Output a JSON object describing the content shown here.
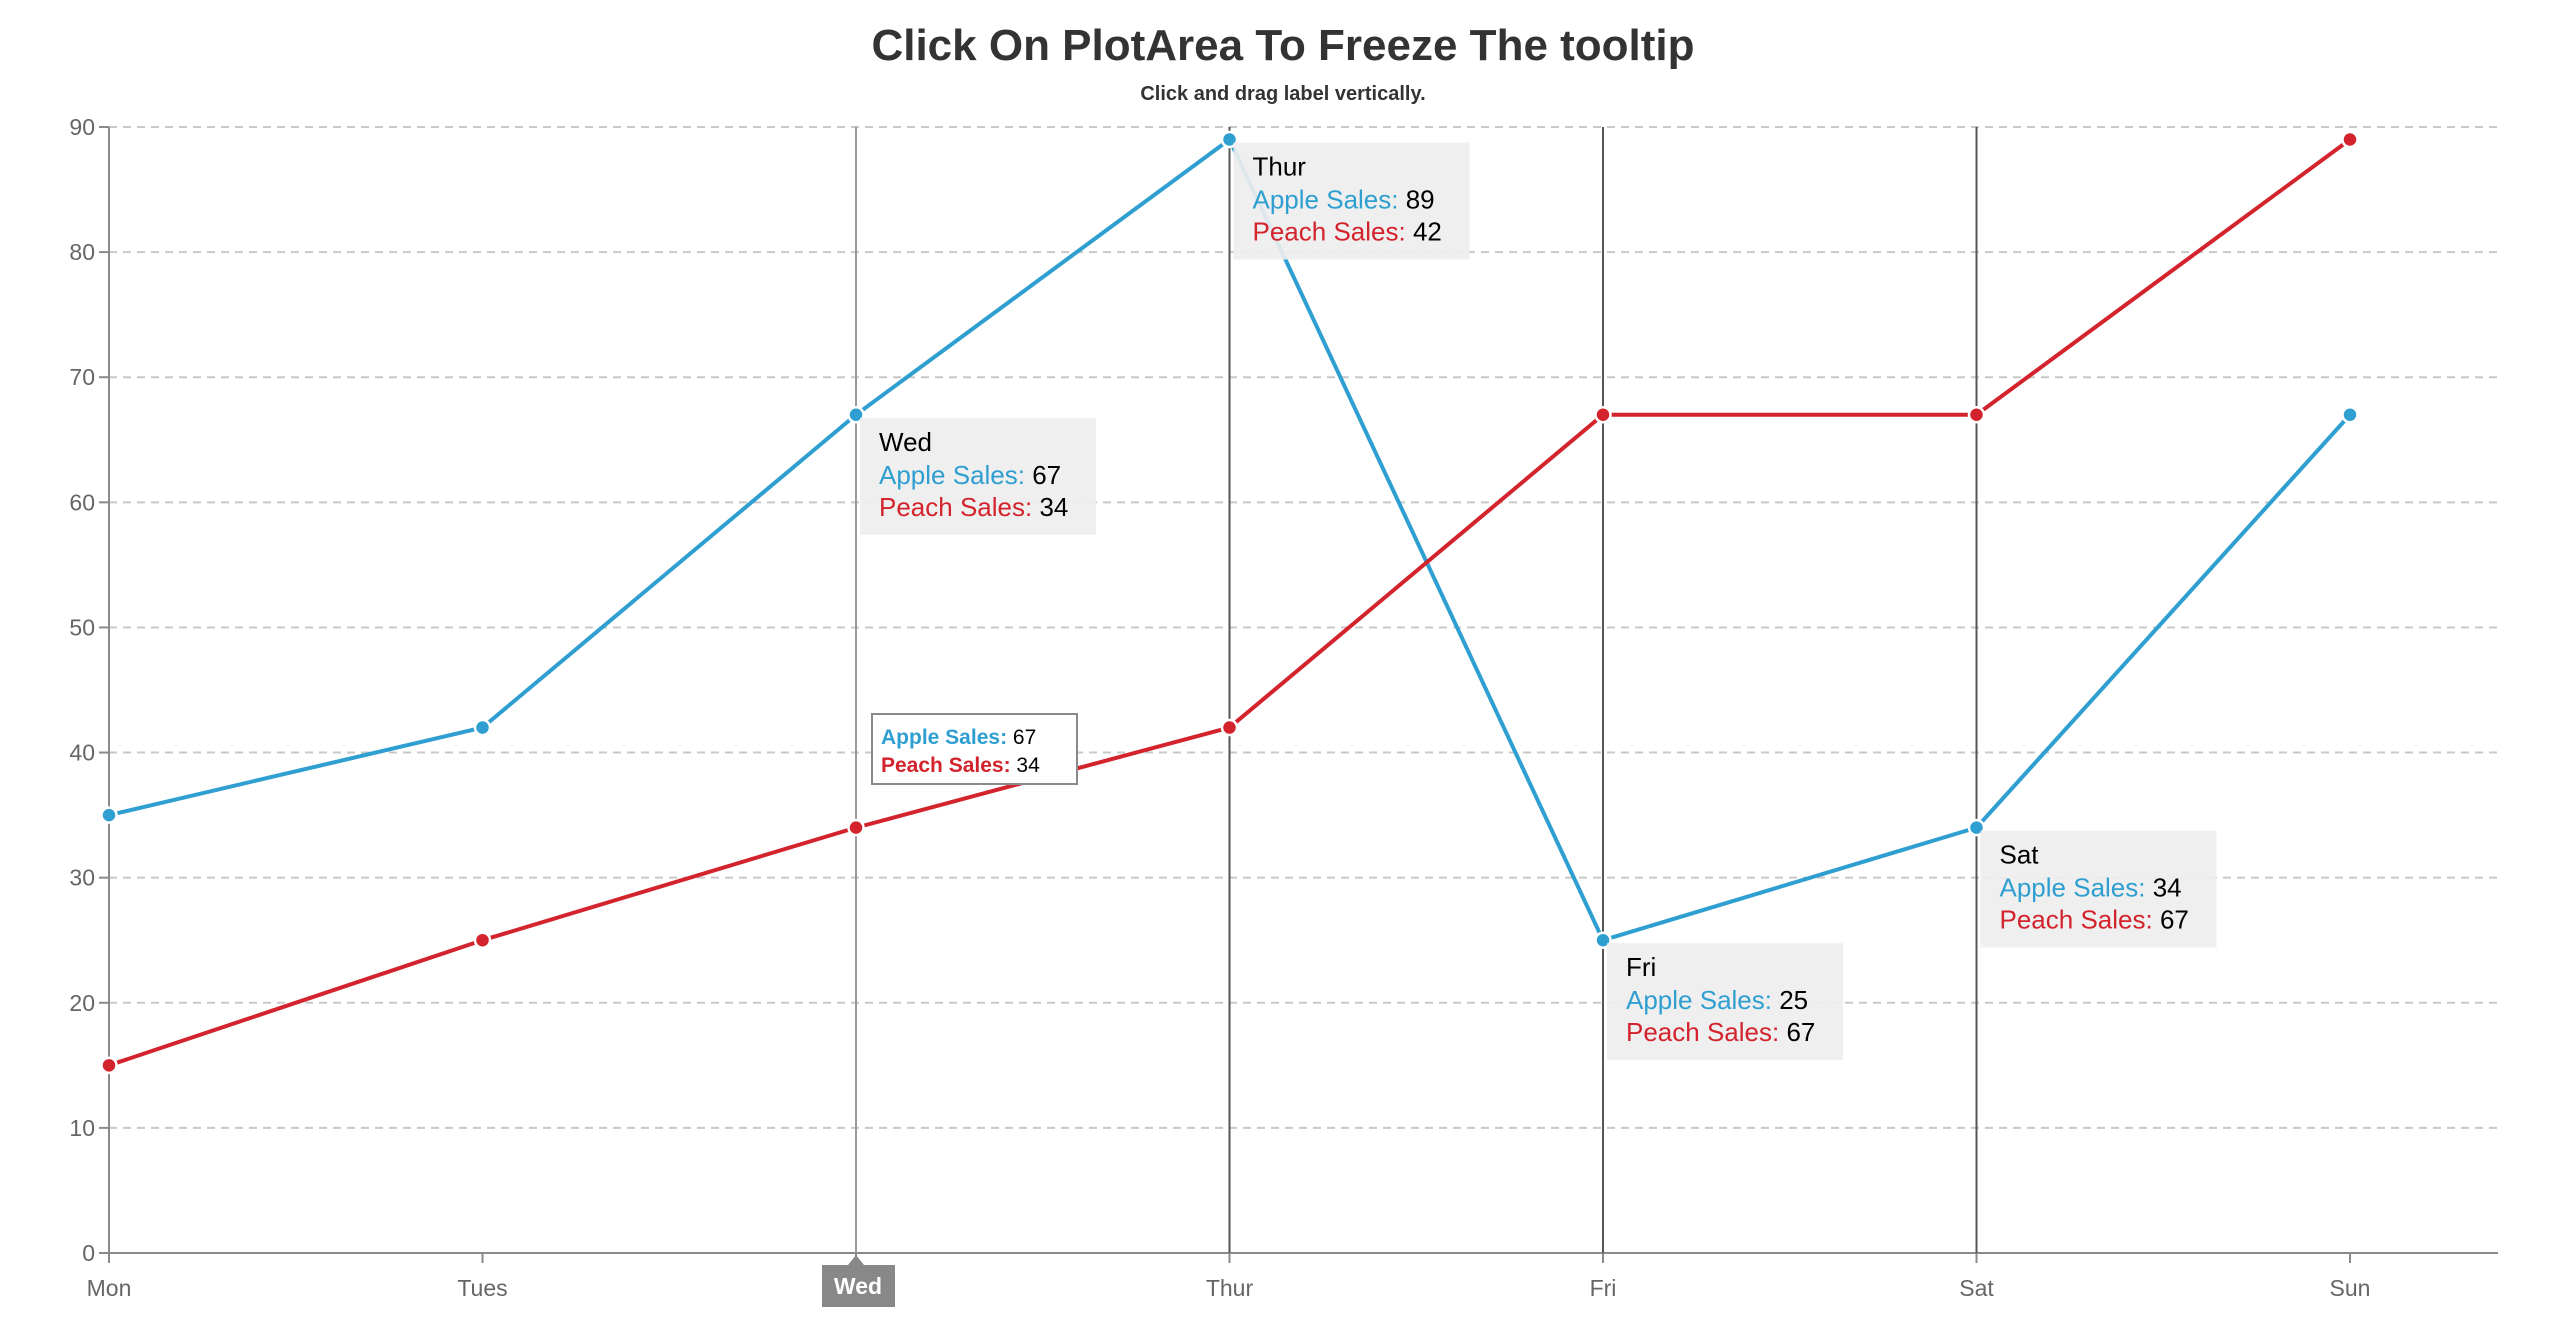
{
  "chart_data": {
    "type": "line",
    "title": "Click On PlotArea To Freeze The tooltip",
    "subtitle": "Click and drag label vertically.",
    "categories": [
      "Mon",
      "Tues",
      "Wed",
      "Thur",
      "Fri",
      "Sat",
      "Sun"
    ],
    "series": [
      {
        "name": "Apple Sales",
        "color": "#2e9fd0",
        "values": [
          35,
          42,
          67,
          89,
          25,
          34,
          67
        ]
      },
      {
        "name": "Peach Sales",
        "color": "#d3232c",
        "values": [
          15,
          25,
          34,
          42,
          67,
          67,
          89
        ]
      }
    ],
    "ylim": [
      0,
      90
    ],
    "yticks": [
      0,
      10,
      20,
      30,
      40,
      50,
      60,
      70,
      80,
      90
    ],
    "grid": "horizontal-dashed",
    "frozen_tooltips": [
      {
        "category": "Wed",
        "label": "Wed",
        "lines": [
          {
            "series": "Apple Sales",
            "value": 67
          },
          {
            "series": "Peach Sales",
            "value": 34
          }
        ]
      },
      {
        "category": "Thur",
        "label": "Thur",
        "lines": [
          {
            "series": "Apple Sales",
            "value": 89
          },
          {
            "series": "Peach Sales",
            "value": 42
          }
        ]
      },
      {
        "category": "Fri",
        "label": "Fri",
        "lines": [
          {
            "series": "Apple Sales",
            "value": 25
          },
          {
            "series": "Peach Sales",
            "value": 67
          }
        ]
      },
      {
        "category": "Sat",
        "label": "Sat",
        "lines": [
          {
            "series": "Apple Sales",
            "value": 34
          },
          {
            "series": "Peach Sales",
            "value": 67
          }
        ]
      }
    ],
    "crosshair": {
      "category": "Wed",
      "x_label": "Wed",
      "lines": [
        {
          "series": "Apple Sales",
          "value": 67
        },
        {
          "series": "Peach Sales",
          "value": 34
        }
      ]
    }
  }
}
